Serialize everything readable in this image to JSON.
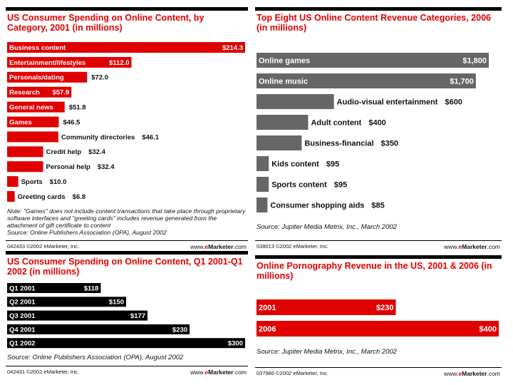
{
  "footer_brand": {
    "prefix": "www.",
    "e": "e",
    "marketer": "Marketer",
    "suffix": ".com"
  },
  "colors": {
    "red": "#e00000",
    "gray": "#666666",
    "black": "#000000"
  },
  "panels": [
    {
      "id": 1,
      "title": "US Consumer Spending on Online Content, by Category, 2001 (in millions)",
      "note": "Note: \"Games\" does not include content transactions that take place through proprietary software interfaces and \"greeting cards\" includes revenue generated from the attachment of gift certificate to content",
      "source": "Source: Online Publishers Association (OPA), August 2002",
      "footer_id": "042433 ©2002 eMarketer, Inc."
    },
    {
      "id": 2,
      "title": "Top Eight US Online Content Revenue Categories, 2006 (in millions)",
      "note": "",
      "source": "Source: Jupiter Media Metrix, Inc., March 2002",
      "footer_id": "038013 ©2002 eMarketer, Inc."
    },
    {
      "id": 3,
      "title": "US Consumer Spending on Online Content, Q1 2001-Q1 2002 (in millions)",
      "note": "",
      "source": "Source: Online Publishers Association (OPA), August 2002",
      "footer_id": "042431 ©2002 eMarketer, Inc."
    },
    {
      "id": 4,
      "title": "Online Pornography Revenue in the US, 2001 & 2006 (in millions)",
      "note": "",
      "source": "Source: Jupiter Media Metrix, Inc., March 2002",
      "footer_id": "037986 ©2002 eMarketer, Inc."
    }
  ],
  "chart_data": [
    {
      "type": "bar",
      "orientation": "horizontal",
      "title": "US Consumer Spending on Online Content, by Category, 2001 (in millions)",
      "color": "#e00000",
      "categories": [
        "Business content",
        "Entertainment/lifestyles",
        "Personals/dating",
        "Research",
        "General news",
        "Games",
        "Community directories",
        "Credit help",
        "Personal help",
        "Sports",
        "Greeting cards"
      ],
      "values": [
        214.3,
        112.0,
        72.0,
        57.9,
        51.8,
        46.5,
        46.1,
        32.4,
        32.4,
        10.0,
        6.8
      ],
      "value_labels": [
        "$214.3",
        "$112.0",
        "$72.0",
        "$57.9",
        "$51.8",
        "$46.5",
        "$46.1",
        "$32.4",
        "$32.4",
        "$10.0",
        "$6.8"
      ],
      "xlim": [
        0,
        214.3
      ]
    },
    {
      "type": "bar",
      "orientation": "horizontal",
      "title": "Top Eight US Online Content Revenue Categories, 2006 (in millions)",
      "color": "#666666",
      "categories": [
        "Online games",
        "Online music",
        "Audio-visual entertainment",
        "Adult content",
        "Business-financial",
        "Kids content",
        "Sports content",
        "Consumer shopping aids"
      ],
      "values": [
        1800,
        1700,
        600,
        400,
        350,
        95,
        95,
        85
      ],
      "value_labels": [
        "$1,800",
        "$1,700",
        "$600",
        "$400",
        "$350",
        "$95",
        "$95",
        "$85"
      ],
      "xlim": [
        0,
        1800
      ]
    },
    {
      "type": "bar",
      "orientation": "horizontal",
      "title": "US Consumer Spending on Online Content, Q1 2001-Q1 2002 (in millions)",
      "color": "#000000",
      "categories": [
        "Q1 2001",
        "Q2 2001",
        "Q3 2001",
        "Q4 2001",
        "Q1 2002"
      ],
      "values": [
        118,
        150,
        177,
        230,
        300
      ],
      "value_labels": [
        "$118",
        "$150",
        "$177",
        "$230",
        "$300"
      ],
      "xlim": [
        0,
        300
      ]
    },
    {
      "type": "bar",
      "orientation": "horizontal",
      "title": "Online Pornography Revenue in the US, 2001 & 2006 (in millions)",
      "color": "#e00000",
      "categories": [
        "2001",
        "2006"
      ],
      "values": [
        230,
        400
      ],
      "value_labels": [
        "$230",
        "$400"
      ],
      "xlim": [
        0,
        400
      ]
    }
  ]
}
